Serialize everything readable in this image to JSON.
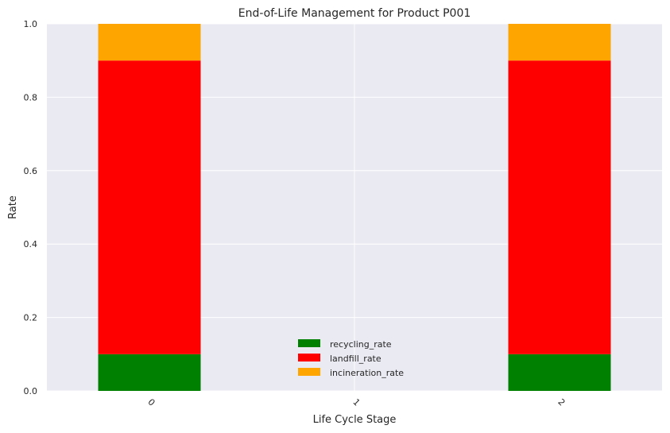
{
  "chart_data": {
    "type": "bar",
    "stacked": true,
    "title": "End-of-Life Management for Product P001",
    "xlabel": "Life Cycle Stage",
    "ylabel": "Rate",
    "categories": [
      "0",
      "1",
      "2"
    ],
    "series": [
      {
        "name": "recycling_rate",
        "color": "#008000",
        "values": [
          0.1,
          0,
          0.1
        ]
      },
      {
        "name": "landfill_rate",
        "color": "#ff0000",
        "values": [
          0.8,
          0,
          0.8
        ]
      },
      {
        "name": "incineration_rate",
        "color": "#ffa500",
        "values": [
          0.1,
          0,
          0.1
        ]
      }
    ],
    "ylim": [
      0,
      1.0
    ],
    "yticks": [
      "0.0",
      "0.2",
      "0.4",
      "0.6",
      "0.8",
      "1.0"
    ],
    "grid": true,
    "legend_position": "bottom-center",
    "plot_background": "#eaeaf2"
  }
}
